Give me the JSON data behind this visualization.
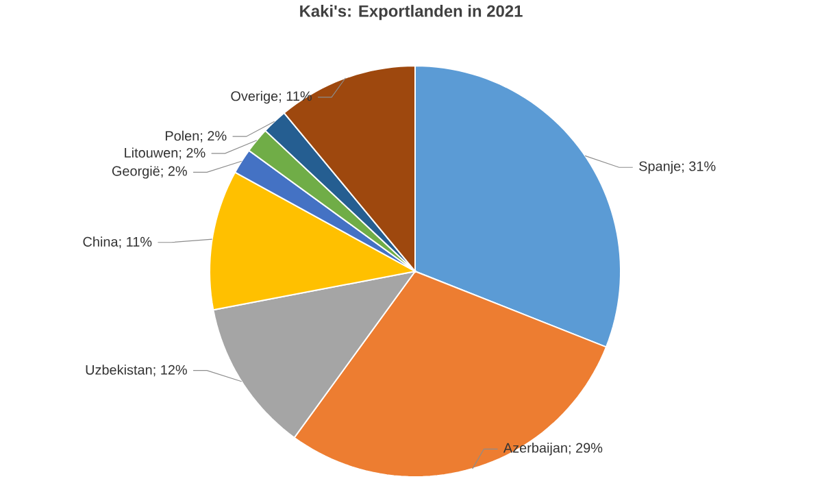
{
  "chart_data": {
    "type": "pie",
    "title": "Kaki's: Exportlanden in 2021",
    "categories": [
      "Spanje",
      "Azerbaijan",
      "Uzbekistan",
      "China",
      "Georgië",
      "Litouwen",
      "Polen",
      "Overige"
    ],
    "values": [
      31,
      29,
      12,
      11,
      2,
      2,
      2,
      11
    ],
    "value_labels": [
      "; 31%",
      "; 29%",
      "; 12%",
      "; 11%",
      "; 2%",
      "; 2%",
      "; 2%",
      "; 11%"
    ],
    "colors": [
      "#5b9bd5",
      "#ed7d31",
      "#a5a5a5",
      "#ffc000",
      "#4472c4",
      "#70ad47",
      "#255e91",
      "#9e480e"
    ]
  }
}
